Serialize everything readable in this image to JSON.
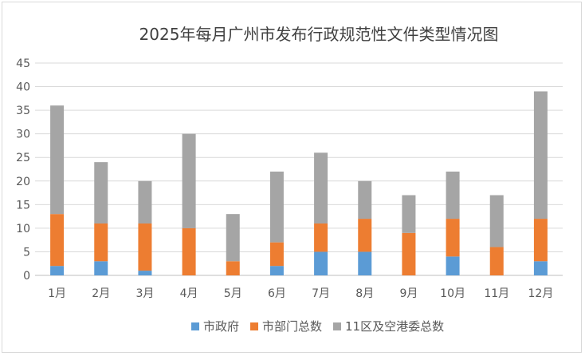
{
  "chart_data": {
    "type": "bar",
    "stacked": true,
    "title": "2025年每月广州市发布行政规范性文件类型情况图",
    "categories": [
      "1月",
      "2月",
      "3月",
      "4月",
      "5月",
      "6月",
      "7月",
      "8月",
      "9月",
      "10月",
      "11月",
      "12月"
    ],
    "series": [
      {
        "name": "市政府",
        "color": "#5b9bd5",
        "values": [
          2,
          3,
          1,
          0,
          0,
          2,
          5,
          5,
          0,
          4,
          0,
          3
        ]
      },
      {
        "name": "市部门总数",
        "color": "#ed7d31",
        "values": [
          11,
          8,
          10,
          10,
          3,
          5,
          6,
          7,
          9,
          8,
          6,
          9
        ]
      },
      {
        "name": "11区及空港委总数",
        "color": "#a5a5a5",
        "values": [
          23,
          13,
          9,
          20,
          10,
          15,
          15,
          8,
          8,
          10,
          11,
          27
        ]
      }
    ],
    "ylim": [
      0,
      45
    ],
    "yticks": [
      "0",
      "5",
      "10",
      "15",
      "20",
      "25",
      "30",
      "35",
      "40",
      "45"
    ],
    "grid": true,
    "legend": "bottom"
  }
}
